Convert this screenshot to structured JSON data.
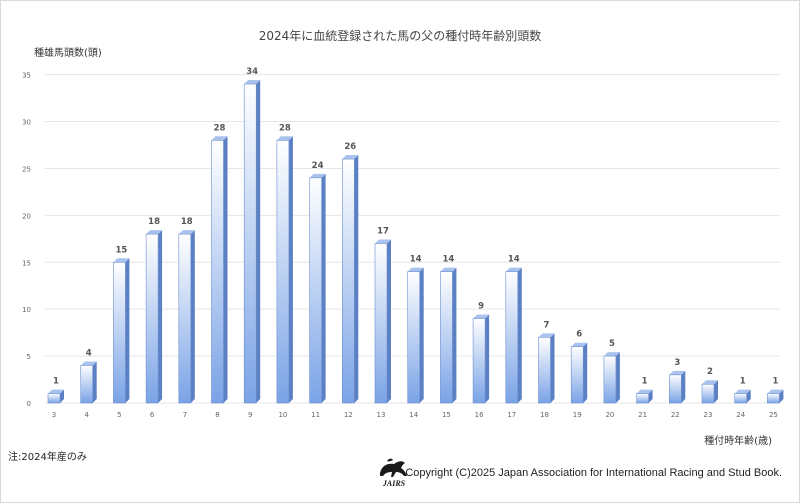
{
  "chart_data": {
    "type": "bar",
    "title": "2024年に血統登録された馬の父の種付時年齢別頭数",
    "ylabel": "種雄馬頭数(頭)",
    "xlabel": "種付時年齢(歳)",
    "ylim": [
      0,
      35
    ],
    "yticks": [
      0,
      5,
      10,
      15,
      20,
      25,
      30,
      35
    ],
    "grid": true,
    "categories": [
      "3",
      "4",
      "5",
      "6",
      "7",
      "8",
      "9",
      "10",
      "11",
      "12",
      "13",
      "14",
      "15",
      "16",
      "17",
      "18",
      "19",
      "20",
      "21",
      "22",
      "23",
      "24",
      "25"
    ],
    "values": [
      1,
      4,
      15,
      18,
      18,
      28,
      34,
      28,
      24,
      26,
      17,
      14,
      14,
      9,
      14,
      7,
      6,
      5,
      1,
      3,
      2,
      1,
      1
    ]
  },
  "footer": {
    "note": "注:2024年産のみ",
    "copyright": "Copyright (C)2025  Japan Association for International Racing and Stud Book.",
    "logo_text": "JAIRS"
  },
  "colors": {
    "bar_light": "#ffffff",
    "bar_dark": "#7aa3e6",
    "bar_side": "#5b80c4",
    "bar_top": "#a9c3ee",
    "grid": "#e6e6e6",
    "label": "#555555"
  }
}
